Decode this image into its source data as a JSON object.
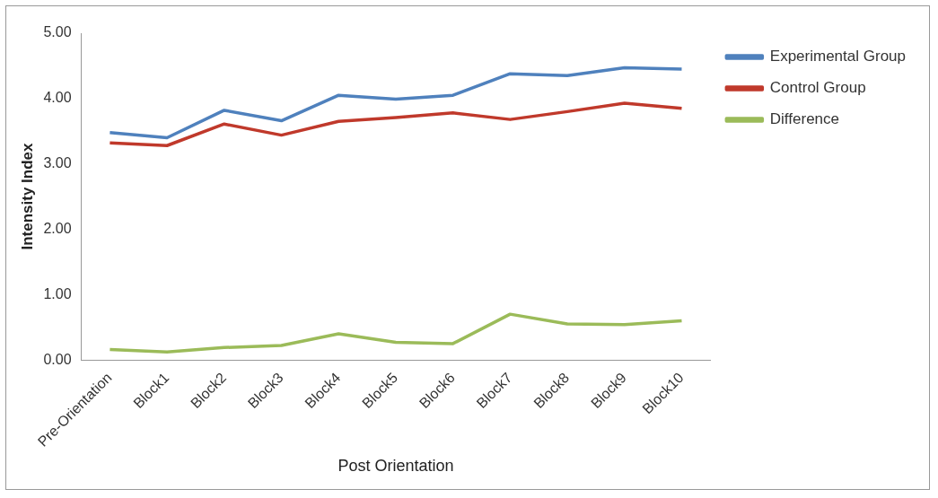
{
  "chart_data": {
    "type": "line",
    "xlabel": "Post Orientation",
    "ylabel": "Intensity Index",
    "categories": [
      "Pre-Orientation",
      "Block1",
      "Block2",
      "Block3",
      "Block4",
      "Block5",
      "Block6",
      "Block7",
      "Block8",
      "Block9",
      "Block10"
    ],
    "series": [
      {
        "name": "Experimental Group",
        "color": "#4f81bd",
        "values": [
          3.48,
          3.4,
          3.82,
          3.66,
          4.05,
          3.99,
          4.05,
          4.38,
          4.35,
          4.47,
          4.45
        ]
      },
      {
        "name": "Control Group",
        "color": "#c0392b",
        "values": [
          3.32,
          3.28,
          3.61,
          3.44,
          3.65,
          3.71,
          3.78,
          3.68,
          3.8,
          3.93,
          3.85
        ]
      },
      {
        "name": "Difference",
        "color": "#9bbb59",
        "values": [
          0.16,
          0.12,
          0.19,
          0.22,
          0.4,
          0.27,
          0.25,
          0.7,
          0.55,
          0.54,
          0.6
        ]
      }
    ],
    "ylim": [
      0,
      5
    ],
    "yticks": [
      {
        "value": 0,
        "label": "0.00"
      },
      {
        "value": 1,
        "label": "1.00"
      },
      {
        "value": 2,
        "label": "2.00"
      },
      {
        "value": 3,
        "label": "3.00"
      },
      {
        "value": 4,
        "label": "4.00"
      },
      {
        "value": 5,
        "label": "5.00"
      }
    ],
    "grid": false,
    "legend": "top right",
    "marker": "none",
    "line_style": "solid"
  }
}
